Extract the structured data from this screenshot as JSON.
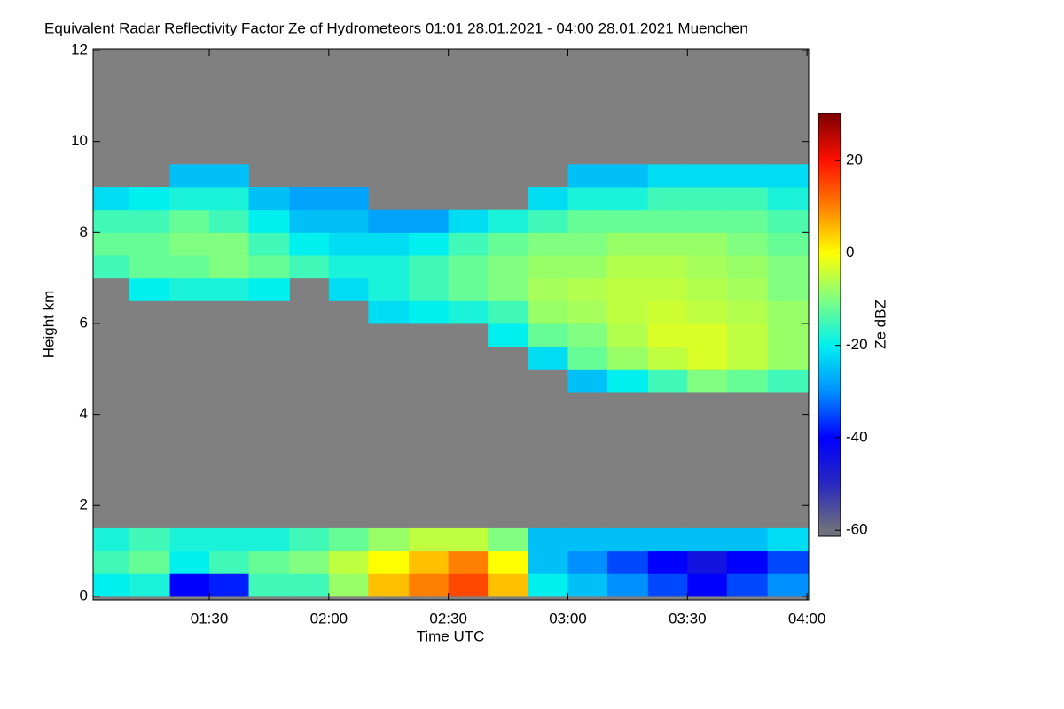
{
  "chart_data": {
    "type": "heatmap",
    "title": "Equivalent Radar Reflectivity Factor Ze of Hydrometeors   01:01 28.01.2021 - 04:00 28.01.2021 Muenchen",
    "xlabel": "Time UTC",
    "ylabel": "Height km",
    "colorbar_label": "Ze dBZ",
    "background": "#808080",
    "xlim": [
      1.014,
      4.007
    ],
    "xticks": [
      {
        "value": 1.5,
        "label": "01:30"
      },
      {
        "value": 2,
        "label": "02:00"
      },
      {
        "value": 2.5,
        "label": "02:30"
      },
      {
        "value": 3,
        "label": "03:00"
      },
      {
        "value": 3.5,
        "label": "03:30"
      },
      {
        "value": 4,
        "label": "04:00"
      }
    ],
    "ylim": [
      -0.08,
      12.04
    ],
    "yticks": [
      0,
      2,
      4,
      6,
      8,
      10,
      12
    ],
    "zlim": [
      -61.3,
      30.2
    ],
    "zticks": [
      -60,
      -40,
      -20,
      0,
      20
    ],
    "colormap": [
      {
        "value": -60,
        "color": "#70707c"
      },
      {
        "value": -50,
        "color": "#2828c0"
      },
      {
        "value": -40,
        "color": "#0000ff"
      },
      {
        "value": -30,
        "color": "#0090ff"
      },
      {
        "value": -20,
        "color": "#00f0f0"
      },
      {
        "value": -10,
        "color": "#80ff80"
      },
      {
        "value": 0,
        "color": "#ffff00"
      },
      {
        "value": 10,
        "color": "#ff8000"
      },
      {
        "value": 20,
        "color": "#ff1000"
      },
      {
        "value": 30,
        "color": "#800000"
      }
    ],
    "x": [
      1.08,
      1.25,
      1.42,
      1.58,
      1.75,
      1.92,
      2.08,
      2.25,
      2.42,
      2.58,
      2.75,
      2.92,
      3.08,
      3.25,
      3.42,
      3.58,
      3.75,
      3.92
    ],
    "y": [
      0.25,
      0.75,
      1.25,
      1.75,
      2.25,
      2.75,
      3.25,
      3.75,
      4.25,
      4.75,
      5.25,
      5.75,
      6.25,
      6.75,
      7.25,
      7.75,
      8.25,
      8.75,
      9.25,
      9.75
    ],
    "z": [
      [
        -20,
        -18,
        -40,
        -38,
        -15,
        -15,
        -8,
        5,
        10,
        15,
        5,
        -20,
        -25,
        -30,
        -35,
        -40,
        -35,
        -30
      ],
      [
        -15,
        -12,
        -20,
        -15,
        -12,
        -10,
        -5,
        0,
        5,
        10,
        0,
        -25,
        -30,
        -35,
        -40,
        -45,
        -40,
        -35
      ],
      [
        -18,
        -15,
        -18,
        -18,
        -18,
        -15,
        -12,
        -8,
        -5,
        -5,
        -10,
        -25,
        -25,
        -25,
        -25,
        -25,
        -25,
        -22
      ],
      [
        null,
        null,
        null,
        null,
        null,
        null,
        null,
        null,
        null,
        null,
        null,
        null,
        null,
        null,
        null,
        null,
        null,
        null
      ],
      [
        null,
        null,
        null,
        null,
        null,
        null,
        null,
        null,
        null,
        null,
        null,
        null,
        null,
        null,
        null,
        null,
        null,
        null
      ],
      [
        null,
        null,
        null,
        null,
        null,
        null,
        null,
        null,
        null,
        null,
        null,
        null,
        null,
        null,
        null,
        null,
        null,
        null
      ],
      [
        null,
        null,
        null,
        null,
        null,
        null,
        null,
        null,
        null,
        null,
        null,
        null,
        null,
        null,
        null,
        null,
        null,
        null
      ],
      [
        null,
        null,
        null,
        null,
        null,
        null,
        null,
        null,
        null,
        null,
        null,
        null,
        null,
        null,
        null,
        null,
        null,
        null
      ],
      [
        null,
        null,
        null,
        null,
        null,
        null,
        null,
        null,
        null,
        null,
        null,
        null,
        null,
        null,
        null,
        null,
        null,
        null
      ],
      [
        null,
        null,
        null,
        null,
        null,
        null,
        null,
        null,
        null,
        null,
        null,
        null,
        -25,
        -20,
        -15,
        -10,
        -12,
        -15
      ],
      [
        null,
        null,
        null,
        null,
        null,
        null,
        null,
        null,
        null,
        null,
        null,
        -22,
        -12,
        -8,
        -5,
        -3,
        -5,
        -8
      ],
      [
        null,
        null,
        null,
        null,
        null,
        null,
        null,
        null,
        null,
        null,
        -20,
        -12,
        -10,
        -6,
        -3,
        -3,
        -5,
        -8
      ],
      [
        null,
        null,
        null,
        null,
        null,
        null,
        null,
        -22,
        -20,
        -18,
        -15,
        -8,
        -7,
        -5,
        -4,
        -5,
        -6,
        -8
      ],
      [
        null,
        -20,
        -18,
        -18,
        -20,
        null,
        -22,
        -18,
        -15,
        -12,
        -10,
        -7,
        -6,
        -5,
        -5,
        -6,
        -7,
        -10
      ],
      [
        -15,
        -12,
        -12,
        -10,
        -12,
        -15,
        -18,
        -18,
        -15,
        -12,
        -10,
        -8,
        -8,
        -6,
        -6,
        -7,
        -8,
        -10
      ],
      [
        -12,
        -12,
        -10,
        -10,
        -15,
        -20,
        -22,
        -22,
        -20,
        -15,
        -12,
        -10,
        -10,
        -8,
        -8,
        -8,
        -10,
        -12
      ],
      [
        -15,
        -15,
        -12,
        -15,
        -20,
        -25,
        -25,
        -28,
        -28,
        -22,
        -18,
        -15,
        -12,
        -12,
        -12,
        -12,
        -12,
        -14
      ],
      [
        -22,
        -20,
        -18,
        -18,
        -25,
        -28,
        -28,
        null,
        null,
        null,
        null,
        -22,
        -18,
        -18,
        -15,
        -15,
        -15,
        -18
      ],
      [
        null,
        null,
        -25,
        -25,
        null,
        null,
        null,
        null,
        null,
        null,
        null,
        null,
        -25,
        -25,
        -22,
        -22,
        -22,
        -22
      ],
      [
        null,
        null,
        null,
        null,
        null,
        null,
        null,
        null,
        null,
        null,
        null,
        null,
        null,
        null,
        null,
        null,
        null,
        null
      ]
    ]
  }
}
